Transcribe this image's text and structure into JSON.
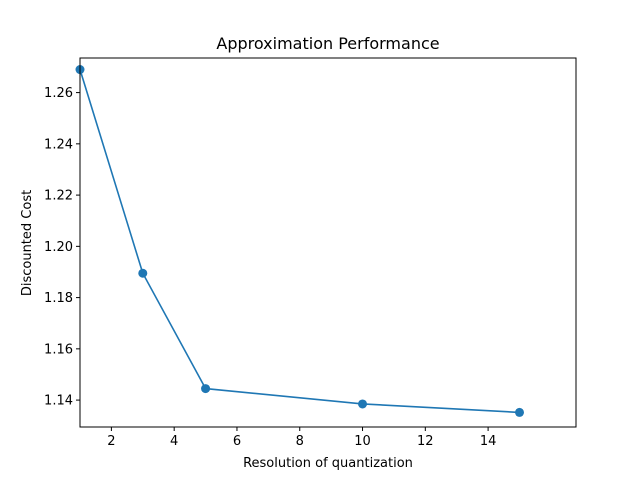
{
  "chart_data": {
    "type": "line",
    "title": "Approximation Performance",
    "xlabel": "Resolution of quantization",
    "ylabel": "Discounted Cost",
    "x": [
      1,
      3,
      5,
      10,
      15
    ],
    "series": [
      {
        "values": [
          1.269,
          1.1895,
          1.1445,
          1.1385,
          1.1352
        ],
        "color": "#1f77b4",
        "marker": "circle"
      }
    ],
    "xlim": [
      1,
      16.8
    ],
    "ylim": [
      1.1295,
      1.2735
    ],
    "xticks": [
      2,
      4,
      6,
      8,
      10,
      12,
      14
    ],
    "yticks": [
      1.14,
      1.16,
      1.18,
      1.2,
      1.22,
      1.24,
      1.26
    ],
    "xtick_labels": [
      "2",
      "4",
      "6",
      "8",
      "10",
      "12",
      "14"
    ],
    "ytick_labels": [
      "1.14",
      "1.16",
      "1.18",
      "1.20",
      "1.22",
      "1.24",
      "1.26"
    ],
    "grid": false,
    "legend": "none"
  }
}
